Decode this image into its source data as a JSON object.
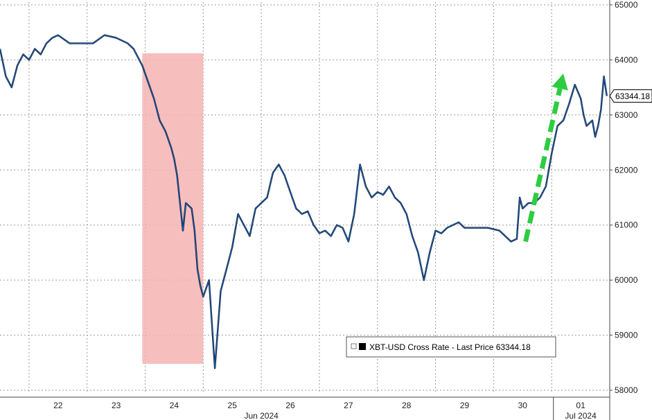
{
  "chart_data": {
    "type": "line",
    "legend": "XBT-USD Cross Rate - Last Price 63344.18",
    "last_price_label": "63344.18",
    "ylim": [
      57950,
      65050
    ],
    "y_ticks": [
      58000,
      59000,
      60000,
      61000,
      62000,
      63000,
      64000,
      65000
    ],
    "y_tick_labels": [
      "58000",
      "59000",
      "60000",
      "61000",
      "62000",
      "63000",
      "64000",
      "65000"
    ],
    "x_day_labels": [
      "22",
      "23",
      "24",
      "25",
      "26",
      "27",
      "28",
      "29",
      "30",
      "01"
    ],
    "x_month_labels": [
      "Jun 2024",
      "Jul 2024"
    ],
    "xlim": [
      21.0,
      31.5
    ],
    "grid": true,
    "colors": {
      "line": "#1f5fa8",
      "highlight": "#f6b3b3",
      "arrow": "#2ecc40"
    },
    "highlight_range": {
      "x": [
        23.45,
        24.5
      ],
      "y": [
        58480,
        64120
      ]
    },
    "arrow": {
      "from": [
        30.05,
        60700
      ],
      "to": [
        30.7,
        63750
      ]
    },
    "series": [
      {
        "x": [
          21.0,
          21.1,
          21.2,
          21.3,
          21.4,
          21.5,
          21.6,
          21.7,
          21.8,
          21.9,
          22.0,
          22.2,
          22.4,
          22.6,
          22.8,
          23.0,
          23.2,
          23.3,
          23.4,
          23.45,
          23.55,
          23.65,
          23.75,
          23.85,
          23.95,
          24.0,
          24.05,
          24.1,
          24.15,
          24.2,
          24.3,
          24.35,
          24.4,
          24.45,
          24.5,
          24.6,
          24.7,
          24.8,
          24.9,
          25.0,
          25.1,
          25.2,
          25.3,
          25.4,
          25.5,
          25.6,
          25.7,
          25.8,
          25.9,
          26.0,
          26.1,
          26.2,
          26.3,
          26.4,
          26.5,
          26.6,
          26.7,
          26.8,
          26.9,
          27.0,
          27.1,
          27.2,
          27.3,
          27.4,
          27.5,
          27.6,
          27.7,
          27.8,
          27.9,
          28.0,
          28.1,
          28.2,
          28.3,
          28.4,
          28.5,
          28.6,
          28.7,
          28.8,
          28.9,
          29.0,
          29.2,
          29.4,
          29.6,
          29.8,
          29.9,
          29.95,
          30.0,
          30.1,
          30.2,
          30.3,
          30.4,
          30.5,
          30.6,
          30.7,
          30.8,
          30.9,
          31.0,
          31.05,
          31.1,
          31.2,
          31.25,
          31.3,
          31.35,
          31.4,
          31.45
        ],
        "y": [
          64200,
          63700,
          63500,
          63900,
          64100,
          64000,
          64200,
          64100,
          64300,
          64400,
          64450,
          64300,
          64300,
          64300,
          64450,
          64400,
          64300,
          64200,
          64000,
          63900,
          63600,
          63300,
          62900,
          62700,
          62400,
          62200,
          61900,
          61400,
          60900,
          61400,
          61300,
          60900,
          60200,
          59900,
          59700,
          60000,
          58400,
          59800,
          60200,
          60600,
          61200,
          61000,
          60800,
          61300,
          61400,
          61500,
          61950,
          62100,
          61900,
          61600,
          61300,
          61200,
          61250,
          61000,
          60850,
          60900,
          60800,
          61000,
          60950,
          60700,
          61200,
          62100,
          61700,
          61500,
          61600,
          61550,
          61700,
          61500,
          61400,
          61200,
          60800,
          60500,
          60000,
          60500,
          60900,
          60850,
          60950,
          61000,
          61050,
          60950,
          60950,
          60950,
          60900,
          60700,
          60750,
          61500,
          61300,
          61400,
          61400,
          61500,
          61700,
          62300,
          62800,
          62900,
          63200,
          63550,
          63300,
          63000,
          62800,
          62900,
          62600,
          62800,
          63100,
          63700,
          63344.18
        ]
      }
    ]
  }
}
